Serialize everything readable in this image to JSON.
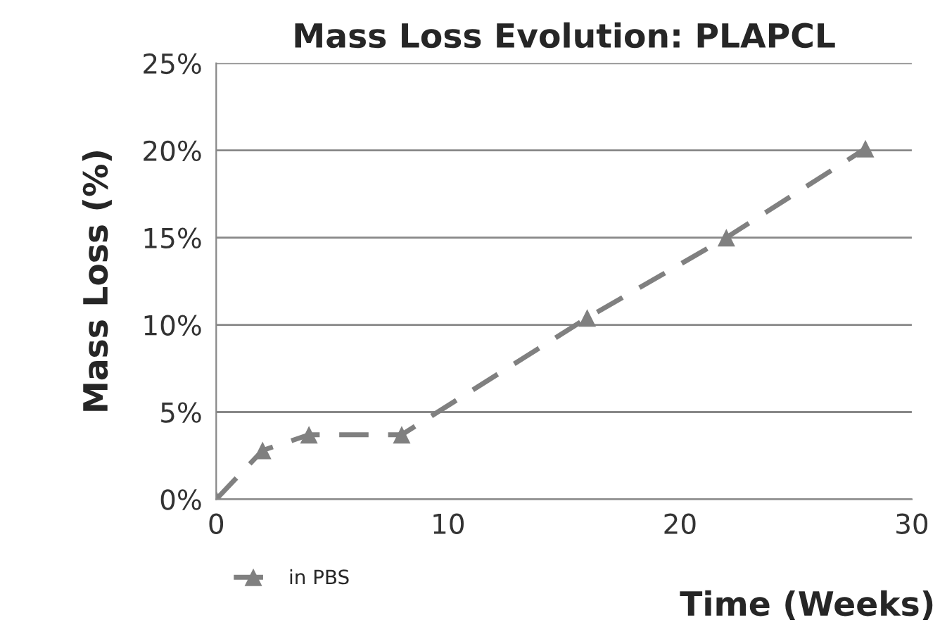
{
  "chart_data": {
    "type": "line",
    "title": "Mass Loss Evolution: PLAPCL",
    "xlabel": "Time (Weeks)",
    "ylabel": "Mass Loss (%)",
    "x": [
      0,
      2,
      4,
      8,
      16,
      22,
      28
    ],
    "series": [
      {
        "name": "in PBS",
        "color": "#808080",
        "values": [
          0,
          2.8,
          3.7,
          3.7,
          10.4,
          15.0,
          20.1
        ]
      }
    ],
    "xlim": [
      0,
      30
    ],
    "xticks": [
      0,
      10,
      20,
      30
    ],
    "ylim": [
      0,
      25
    ],
    "yticks": [
      {
        "value": 0,
        "label": "0%"
      },
      {
        "value": 5,
        "label": "5%"
      },
      {
        "value": 10,
        "label": "10%"
      },
      {
        "value": 15,
        "label": "15%"
      },
      {
        "value": 20,
        "label": "20%"
      },
      {
        "value": 25,
        "label": "25%"
      }
    ],
    "grid": "y",
    "legend": "bottom left",
    "marker": "triangle",
    "line_style": "dashed"
  }
}
